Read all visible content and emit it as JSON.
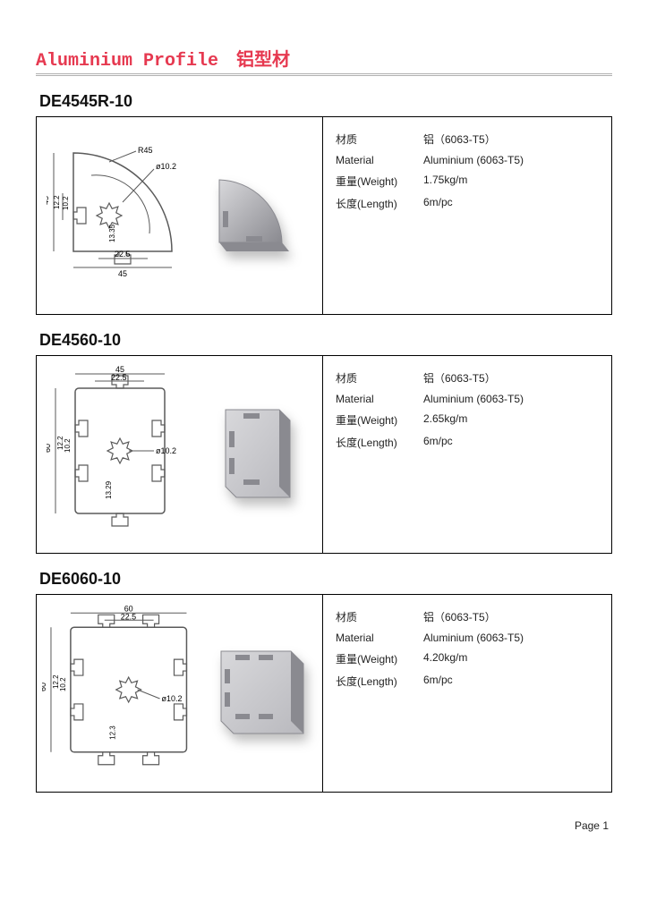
{
  "header": {
    "title_en": "Aluminium Profile",
    "title_cn": "铝型材"
  },
  "colors": {
    "header_red": "#e63950",
    "stroke": "#5a5a5a",
    "render_light": "#d8d8db",
    "render_mid": "#b9b9be",
    "render_dark": "#8a8a90"
  },
  "profiles": [
    {
      "code": "DE4545R-10",
      "shape": "quarter",
      "dims": {
        "width": "45",
        "height": "45",
        "slot_half": "22.5",
        "radius": "R45",
        "hole": "ø10.2",
        "d1": "12.2",
        "d2": "10.2",
        "d3": "13.35"
      },
      "specs": [
        {
          "label_cn": "材质",
          "value": "铝（6063-T5）"
        },
        {
          "label_en": "Material",
          "value": "Aluminium (6063-T5)"
        },
        {
          "label_cn": "重量(Weight)",
          "value": "1.75kg/m"
        },
        {
          "label_cn": "长度(Length)",
          "value": "6m/pc"
        }
      ]
    },
    {
      "code": "DE4560-10",
      "shape": "rect",
      "dims": {
        "width": "45",
        "height": "60",
        "slot_half": "22.5",
        "hole": "ø10.2",
        "d1": "12.2",
        "d2": "10.2",
        "d3": "13.29"
      },
      "specs": [
        {
          "label_cn": "材质",
          "value": "铝（6063-T5）"
        },
        {
          "label_en": "Material",
          "value": "Aluminium (6063-T5)"
        },
        {
          "label_cn": "重量(Weight)",
          "value": "2.65kg/m"
        },
        {
          "label_cn": "长度(Length)",
          "value": "6m/pc"
        }
      ]
    },
    {
      "code": "DE6060-10",
      "shape": "square",
      "dims": {
        "width": "60",
        "height": "60",
        "slot_half": "22.5",
        "hole": "ø10.2",
        "d1": "12.2",
        "d2": "10.2",
        "d3": "12.3"
      },
      "specs": [
        {
          "label_cn": "材质",
          "value": "铝（6063-T5）"
        },
        {
          "label_en": "Material",
          "value": "Aluminium (6063-T5)"
        },
        {
          "label_cn": "重量(Weight)",
          "value": "4.20kg/m"
        },
        {
          "label_cn": "长度(Length)",
          "value": "6m/pc"
        }
      ]
    }
  ],
  "footer": {
    "page": "Page 1"
  }
}
